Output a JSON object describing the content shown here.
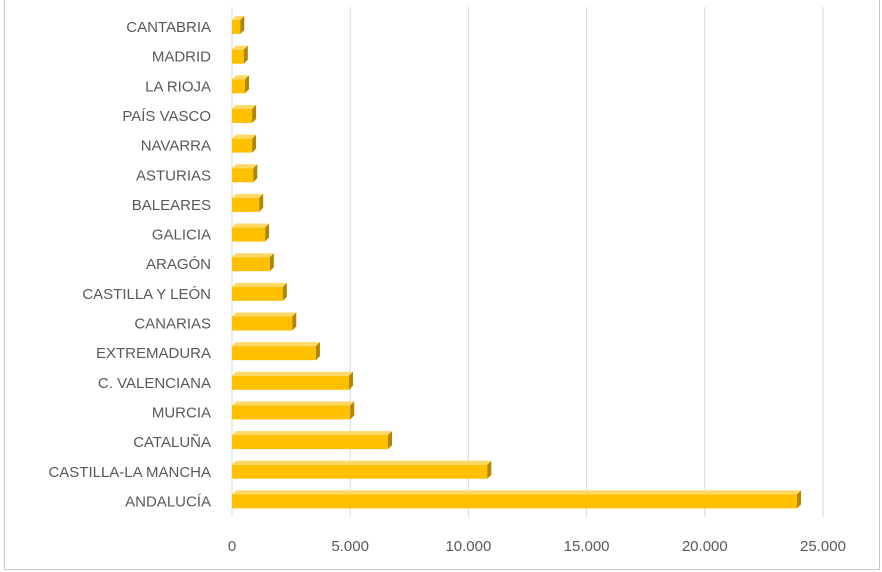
{
  "chart_data": {
    "type": "bar",
    "orientation": "horizontal",
    "style": "3d",
    "title": "",
    "xlabel": "",
    "ylabel": "",
    "categories": [
      "ANDALUCÍA",
      "CASTILLA-LA MANCHA",
      "CATALUÑA",
      "MURCIA",
      "C. VALENCIANA",
      "EXTREMADURA",
      "CANARIAS",
      "CASTILLA Y LEÓN",
      "ARAGÓN",
      "GALICIA",
      "BALEARES",
      "ASTURIAS",
      "NAVARRA",
      "PAÍS VASCO",
      "LA RIOJA",
      "MADRID",
      "CANTABRIA"
    ],
    "values": [
      23900,
      10800,
      6600,
      5000,
      4950,
      3550,
      2550,
      2150,
      1600,
      1400,
      1150,
      900,
      850,
      850,
      550,
      500,
      350
    ],
    "xlim": [
      0,
      25000
    ],
    "ticks": [
      "0",
      "5.000",
      "10.000",
      "15.000",
      "20.000",
      "25.000"
    ],
    "tick_values": [
      0,
      5000,
      10000,
      15000,
      20000,
      25000
    ],
    "grid": true,
    "legend": "none",
    "colors": {
      "bar_front": "#FFC000",
      "bar_top": "#FFD966",
      "bar_side": "#B38600",
      "gridline": "#D9D9D9",
      "label": "#595959"
    }
  }
}
